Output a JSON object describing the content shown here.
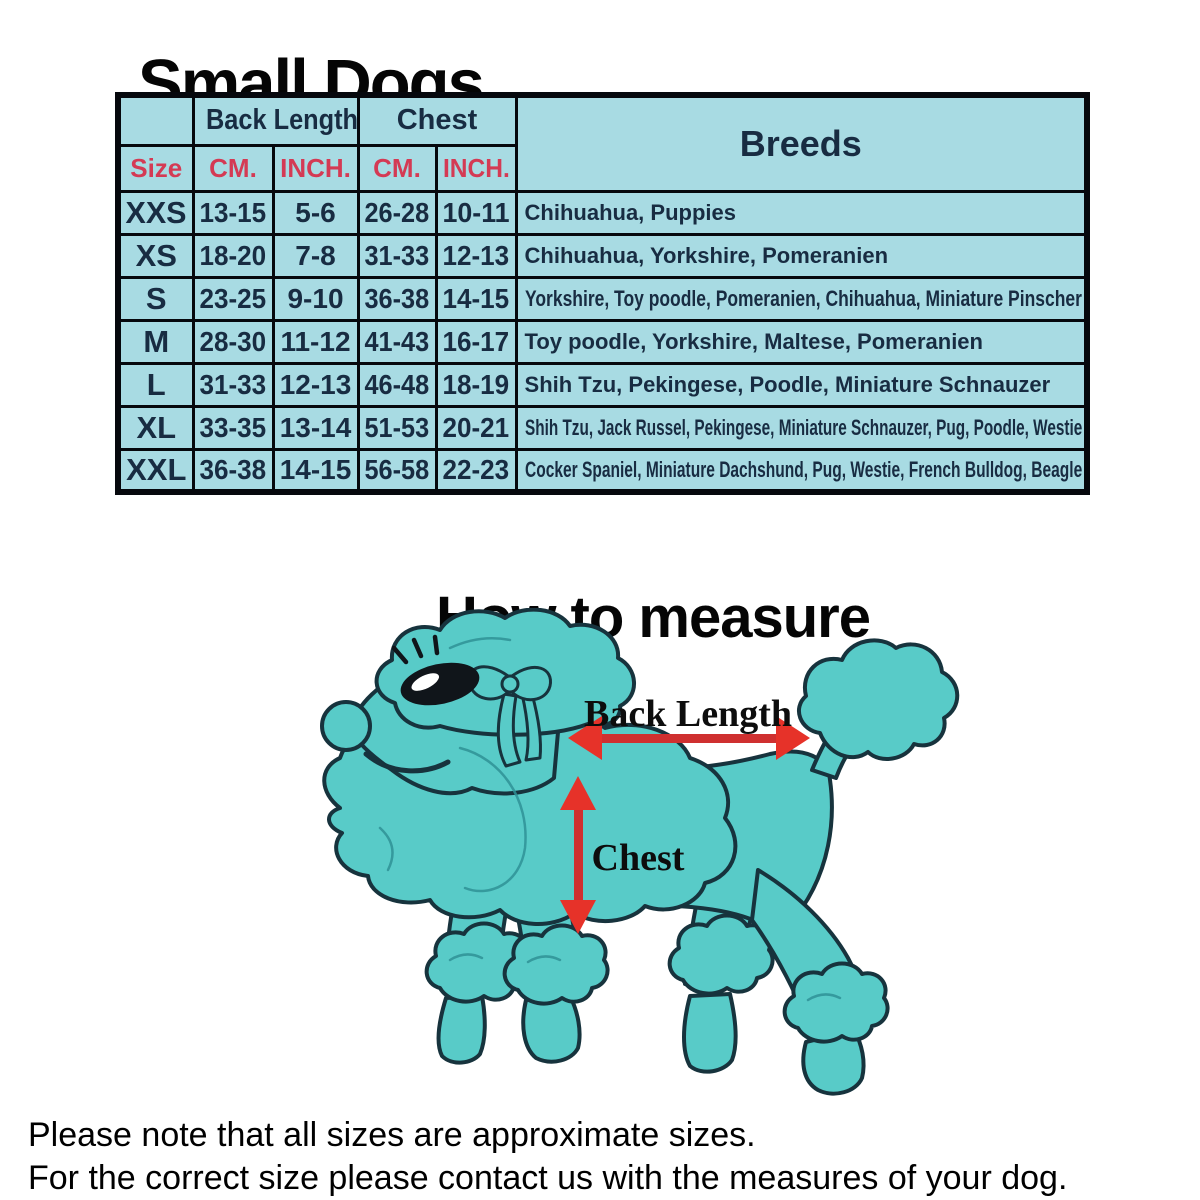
{
  "page": {
    "title": "Small Dogs",
    "how_to_measure_title": "How to measure",
    "footer_lines": [
      "Please note that all sizes are approximate sizes.",
      "For the correct size please contact us with the measures of your dog."
    ]
  },
  "table": {
    "group_headers": {
      "back_length": "Back Length",
      "chest": "Chest",
      "breeds": "Breeds"
    },
    "sub_headers": {
      "size": "Size",
      "back_cm": "CM.",
      "back_inch": "INCH.",
      "chest_cm": "CM.",
      "chest_inch": "INCH."
    },
    "rows": [
      {
        "size": "XXS",
        "back_cm": "13-15",
        "back_inch": "5-6",
        "chest_cm": "26-28",
        "chest_inch": "10-11",
        "breeds": "Chihuahua, Puppies"
      },
      {
        "size": "XS",
        "back_cm": "18-20",
        "back_inch": "7-8",
        "chest_cm": "31-33",
        "chest_inch": "12-13",
        "breeds": "Chihuahua, Yorkshire, Pomeranien"
      },
      {
        "size": "S",
        "back_cm": "23-25",
        "back_inch": "9-10",
        "chest_cm": "36-38",
        "chest_inch": "14-15",
        "breeds": "Yorkshire, Toy poodle, Pomeranien, Chihuahua, Miniature Pinscher"
      },
      {
        "size": "M",
        "back_cm": "28-30",
        "back_inch": "11-12",
        "chest_cm": "41-43",
        "chest_inch": "16-17",
        "breeds": "Toy poodle, Yorkshire, Maltese, Pomeranien"
      },
      {
        "size": "L",
        "back_cm": "31-33",
        "back_inch": "12-13",
        "chest_cm": "46-48",
        "chest_inch": "18-19",
        "breeds": "Shih Tzu, Pekingese, Poodle, Miniature Schnauzer"
      },
      {
        "size": "XL",
        "back_cm": "33-35",
        "back_inch": "13-14",
        "chest_cm": "51-53",
        "chest_inch": "20-21",
        "breeds": "Shih Tzu, Jack Russel, Pekingese, Miniature Schnauzer, Pug, Poodle, Westie"
      },
      {
        "size": "XXL",
        "back_cm": "36-38",
        "back_inch": "14-15",
        "chest_cm": "56-58",
        "chest_inch": "22-23",
        "breeds": "Cocker Spaniel, Miniature Dachshund, Pug, Westie, French Bulldog, Beagle"
      }
    ]
  },
  "diagram": {
    "back_length_label": "Back Length",
    "chest_label": "Chest"
  },
  "colors": {
    "table_bg": "#a8dbe3",
    "table_border": "#06080d",
    "header_red": "#d43a54",
    "text_navy": "#182c42",
    "dog_fill": "#58cbc8",
    "dog_outline": "#17333d",
    "arrow_red": "#e63229"
  }
}
